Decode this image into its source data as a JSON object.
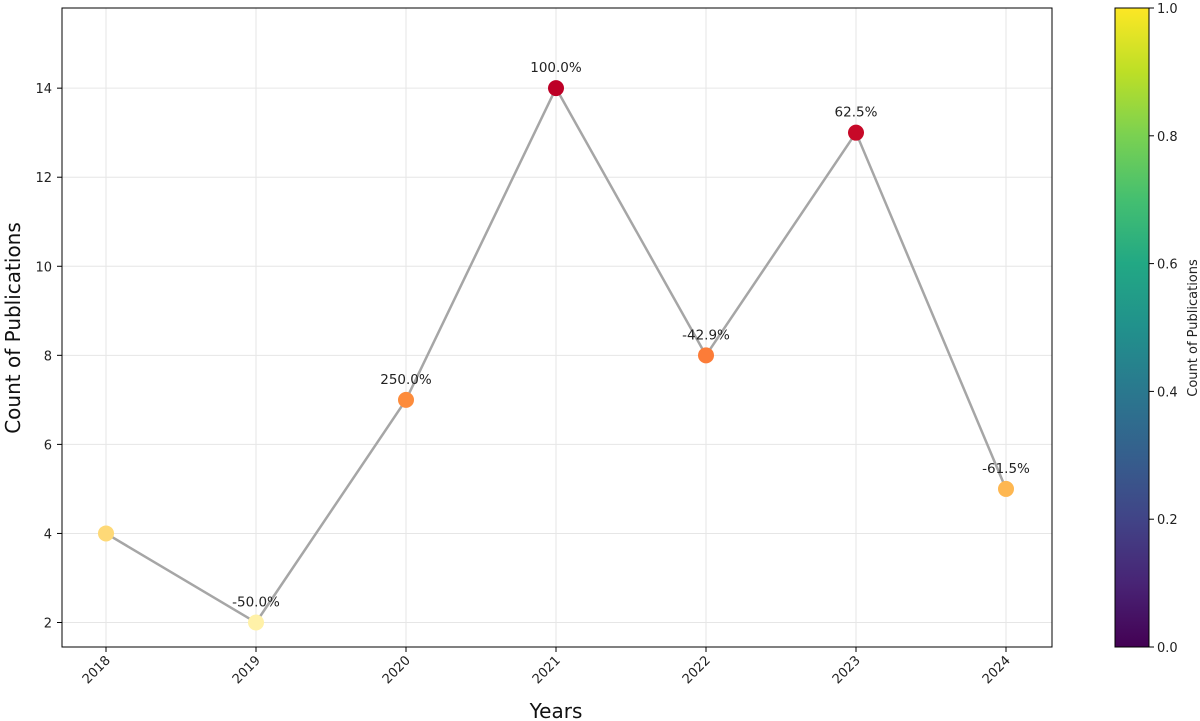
{
  "chart_data": {
    "type": "line",
    "title": "",
    "xlabel": "Years",
    "ylabel": "Count of Publications",
    "categories": [
      "2018",
      "2019",
      "2020",
      "2021",
      "2022",
      "2023",
      "2024"
    ],
    "values": [
      4,
      2,
      7,
      14,
      8,
      13,
      5
    ],
    "growth_labels": [
      "",
      "-50.0%",
      "250.0%",
      "100.0%",
      "-42.9%",
      "62.5%",
      "-61.5%"
    ],
    "point_colors": [
      "#fed977",
      "#fff1a8",
      "#fd8c3c",
      "#bd0026",
      "#fc7c38",
      "#c70928",
      "#feb751"
    ],
    "line_color": "#a6a6a6",
    "ylim": [
      1.45,
      15.8
    ],
    "yticks": [
      2,
      4,
      6,
      8,
      10,
      12,
      14
    ],
    "grid": true,
    "colorbar": {
      "label": "Count of Publications",
      "ticks": [
        "0.0",
        "0.2",
        "0.4",
        "0.6",
        "0.8",
        "1.0"
      ],
      "tick_values": [
        0,
        0.2,
        0.4,
        0.6,
        0.8,
        1.0
      ],
      "range": [
        0,
        1
      ],
      "colormap": "viridis"
    }
  }
}
